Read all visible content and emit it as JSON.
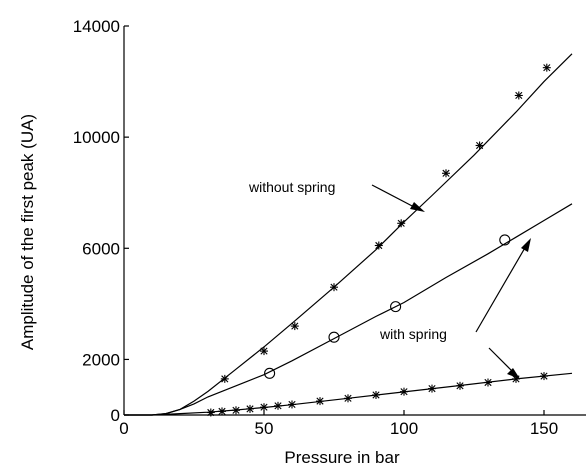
{
  "chart_data": {
    "type": "line",
    "title": "",
    "xlabel": "Pressure in bar",
    "ylabel": "Amplitude of the first peak (UA)",
    "xlim": [
      0,
      165
    ],
    "ylim": [
      0,
      14000
    ],
    "x_ticks": [
      0,
      50,
      100,
      150
    ],
    "x_tick_labels": [
      "0",
      "50",
      "100",
      "150"
    ],
    "y_ticks": [
      0,
      2000,
      6000,
      10000,
      14000
    ],
    "y_tick_labels": [
      "0",
      "2000",
      "6000",
      "10000",
      "14000"
    ],
    "grid": false,
    "series": [
      {
        "name": "without spring",
        "marker": "asterisk",
        "points_x": [
          36,
          50,
          61,
          75,
          91,
          99,
          115,
          127,
          141,
          151
        ],
        "points_y": [
          1300,
          2300,
          3200,
          4600,
          6100,
          6900,
          8700,
          9700,
          11500,
          12500
        ],
        "curve_x": [
          0,
          10,
          15,
          20,
          25,
          30,
          40,
          50,
          60,
          75,
          90,
          100,
          110,
          125,
          140,
          150,
          160
        ],
        "curve_y": [
          0,
          0,
          50,
          200,
          500,
          850,
          1650,
          2450,
          3300,
          4600,
          5950,
          6950,
          7900,
          9350,
          10900,
          12000,
          13000
        ]
      },
      {
        "name": "with spring",
        "marker": "circle",
        "points_x": [
          52,
          75,
          97,
          136
        ],
        "points_y": [
          1500,
          2800,
          3900,
          6300
        ],
        "curve_x": [
          0,
          10,
          15,
          20,
          25,
          30,
          40,
          50,
          60,
          75,
          90,
          100,
          115,
          130,
          140,
          150,
          160
        ],
        "curve_y": [
          0,
          0,
          50,
          200,
          400,
          650,
          1050,
          1450,
          1950,
          2750,
          3550,
          4050,
          4950,
          5800,
          6400,
          7000,
          7600
        ]
      },
      {
        "name": "with spring",
        "marker": "asterisk",
        "points_x": [
          31,
          35,
          40,
          45,
          50,
          55,
          60,
          70,
          80,
          90,
          100,
          110,
          120,
          130,
          140,
          150
        ],
        "points_y": [
          90,
          130,
          170,
          220,
          280,
          330,
          380,
          500,
          600,
          720,
          840,
          950,
          1050,
          1170,
          1300,
          1400
        ],
        "curve_x": [
          0,
          10,
          15,
          20,
          30,
          40,
          50,
          60,
          80,
          100,
          120,
          140,
          160
        ],
        "curve_y": [
          0,
          0,
          20,
          50,
          100,
          180,
          270,
          370,
          600,
          830,
          1060,
          1300,
          1500
        ]
      }
    ],
    "annotations": [
      {
        "text": "without spring",
        "target_series": 0
      },
      {
        "text": "with spring",
        "target_series": [
          1,
          2
        ]
      }
    ]
  }
}
